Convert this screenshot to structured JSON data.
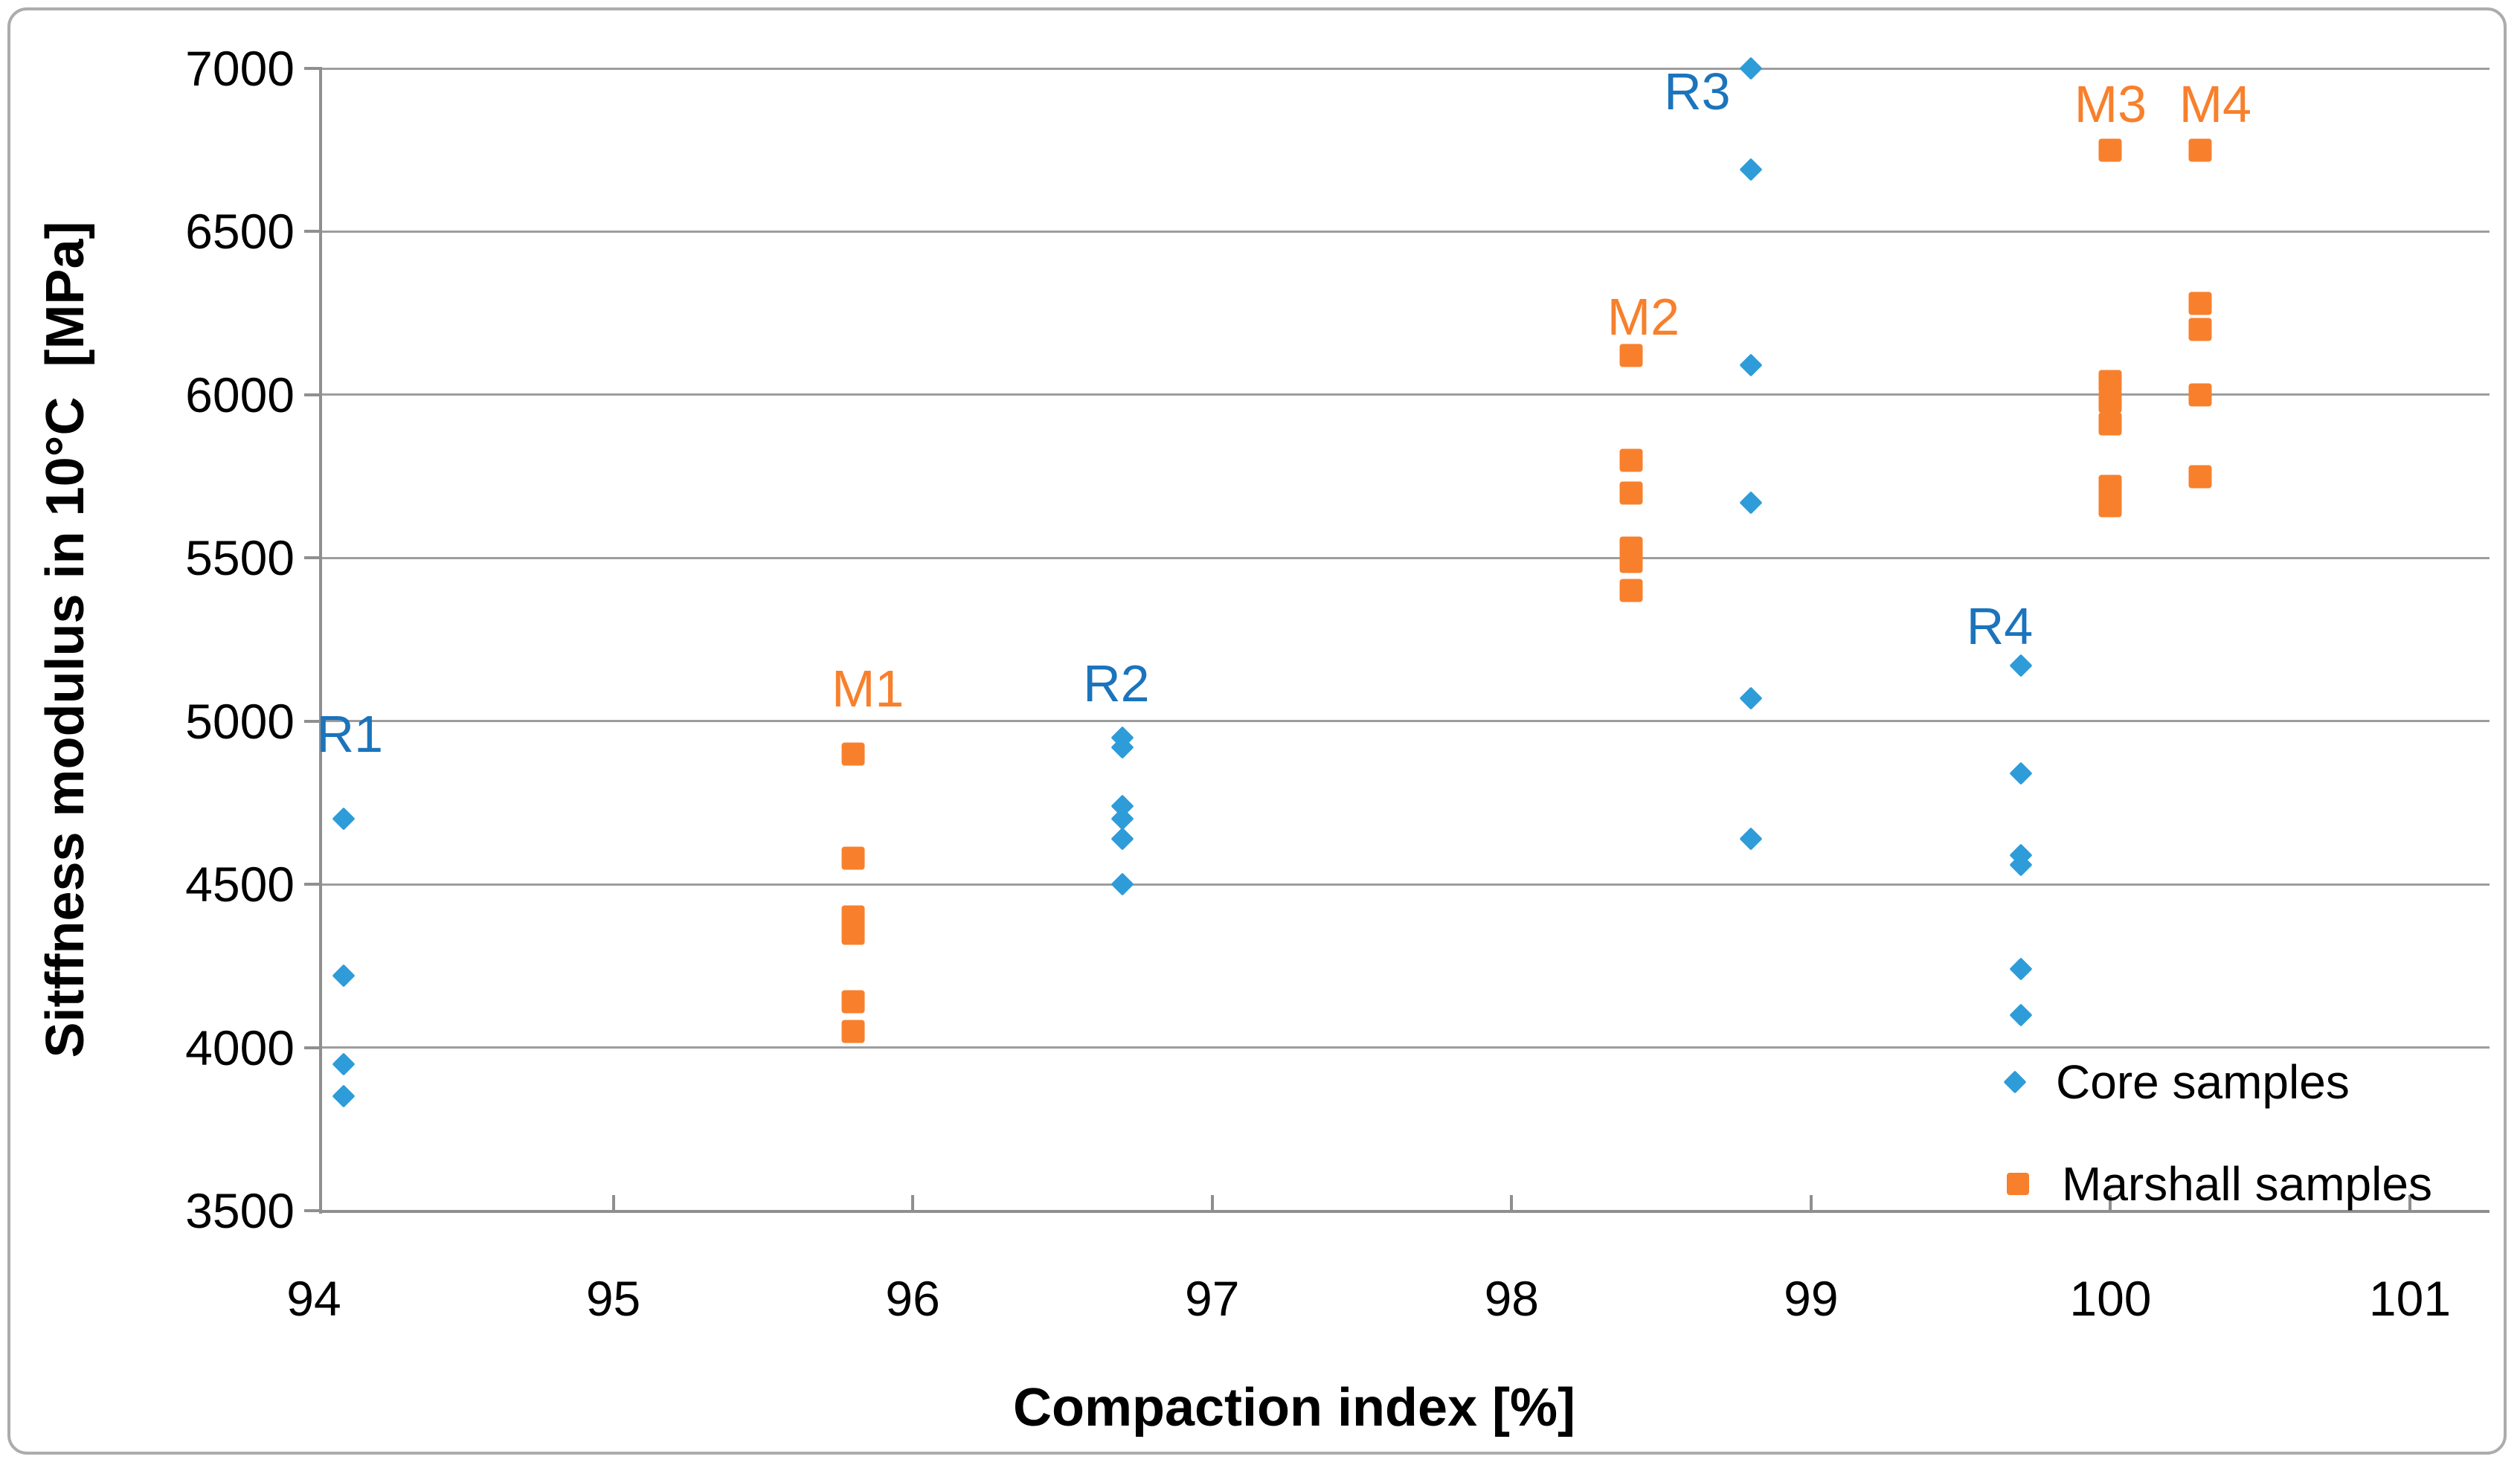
{
  "chart_data": {
    "type": "scatter",
    "title": "",
    "xlabel": "Compaction index [%]",
    "ylabel": "Sitffness modulus in 10°C  [MPa]",
    "x_ticks": [
      94,
      95,
      96,
      97,
      98,
      99,
      100,
      101
    ],
    "y_ticks": [
      3500,
      4000,
      4500,
      5000,
      5500,
      6000,
      6500,
      7000
    ],
    "xlim": [
      94,
      101
    ],
    "ylim": [
      3500,
      7000
    ],
    "grid": "horizontal-only",
    "legend_position": "inside-bottom-right",
    "series": [
      {
        "name": "Core samples",
        "marker": "diamond",
        "color": "#2E9CD9",
        "label_color": "#1B74BC",
        "groups": [
          {
            "label": "R1",
            "x": 94.1,
            "values": [
              4700,
              4220,
              3950,
              3850
            ],
            "label_pos": {
              "x": 94.12,
              "y": 4960
            }
          },
          {
            "label": "R2",
            "x": 96.7,
            "values": [
              4950,
              4920,
              4740,
              4700,
              4640,
              4500
            ],
            "label_pos": {
              "x": 96.68,
              "y": 5115
            }
          },
          {
            "label": "R3",
            "x": 98.8,
            "values": [
              7000,
              6690,
              6090,
              5670,
              5070,
              4640
            ],
            "label_pos": {
              "x": 98.62,
              "y": 6930
            }
          },
          {
            "label": "R4",
            "x": 99.7,
            "values": [
              5170,
              4840,
              4590,
              4560,
              4240,
              4100
            ],
            "label_pos": {
              "x": 99.63,
              "y": 5290
            }
          }
        ]
      },
      {
        "name": "Marshall samples",
        "marker": "square",
        "color": "#F8802C",
        "label_color": "#F8802C",
        "groups": [
          {
            "label": "M1",
            "x": 95.8,
            "values": [
              4900,
              4580,
              4400,
              4350,
              4140,
              4050
            ],
            "label_pos": {
              "x": 95.85,
              "y": 5100
            }
          },
          {
            "label": "M2",
            "x": 98.4,
            "values": [
              6120,
              5800,
              5700,
              5530,
              5490,
              5400
            ],
            "label_pos": {
              "x": 98.44,
              "y": 6240
            }
          },
          {
            "label": "M3",
            "x": 100.0,
            "values": [
              6750,
              6040,
              5980,
              5910,
              5720,
              5660
            ],
            "label_pos": {
              "x": 100.0,
              "y": 6890
            }
          },
          {
            "label": "M4",
            "x": 100.3,
            "values": [
              6750,
              6280,
              6200,
              6000,
              5750
            ],
            "label_pos": {
              "x": 100.35,
              "y": 6890
            }
          }
        ]
      }
    ],
    "colors": {
      "gridline": "#9D9D9D",
      "axis": "#8F8F8F",
      "border": "#ACACAC",
      "text": "#000000"
    }
  }
}
